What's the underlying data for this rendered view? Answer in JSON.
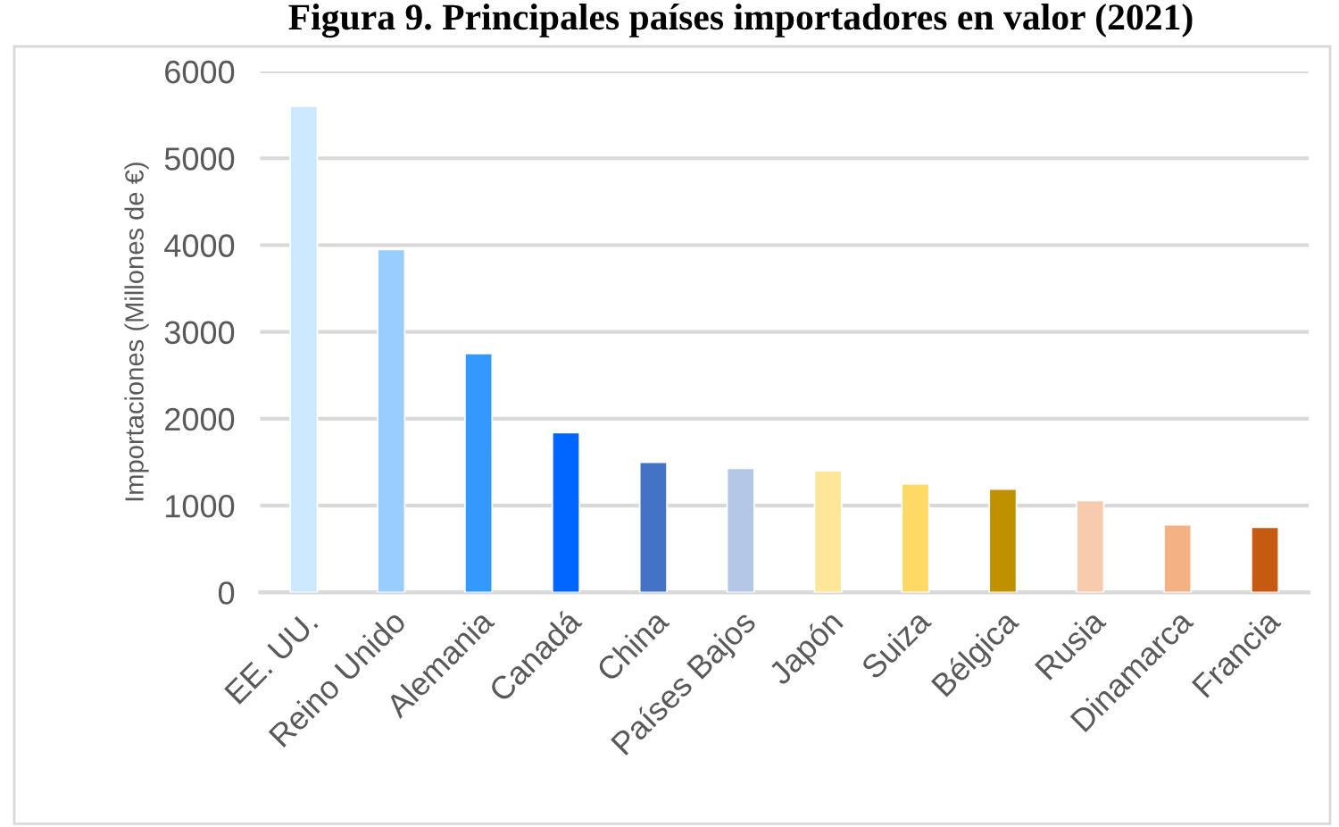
{
  "chart_data": {
    "type": "bar",
    "title": "Figura 9. Principales países importadores en valor (2021)",
    "ylabel": "Importaciones (Millones de €)",
    "categories": [
      "EE. UU.",
      "Reino Unido",
      "Alemania",
      "Canadá",
      "China",
      "Países Bajos",
      "Japón",
      "Suiza",
      "Bélgica",
      "Rusia",
      "Dinamarca",
      "Francia"
    ],
    "values": [
      5600,
      3950,
      2750,
      1840,
      1500,
      1430,
      1400,
      1250,
      1190,
      1060,
      780,
      750
    ],
    "colors": [
      "#cce9ff",
      "#99ccff",
      "#3399ff",
      "#0066ff",
      "#4472c4",
      "#b4c7e7",
      "#ffe699",
      "#ffd966",
      "#bf9000",
      "#f8cbad",
      "#f4b183",
      "#c55a11"
    ],
    "ylim": [
      0,
      6000
    ],
    "yticks": [
      0,
      1000,
      2000,
      3000,
      4000,
      5000,
      6000
    ],
    "grid": "y"
  }
}
